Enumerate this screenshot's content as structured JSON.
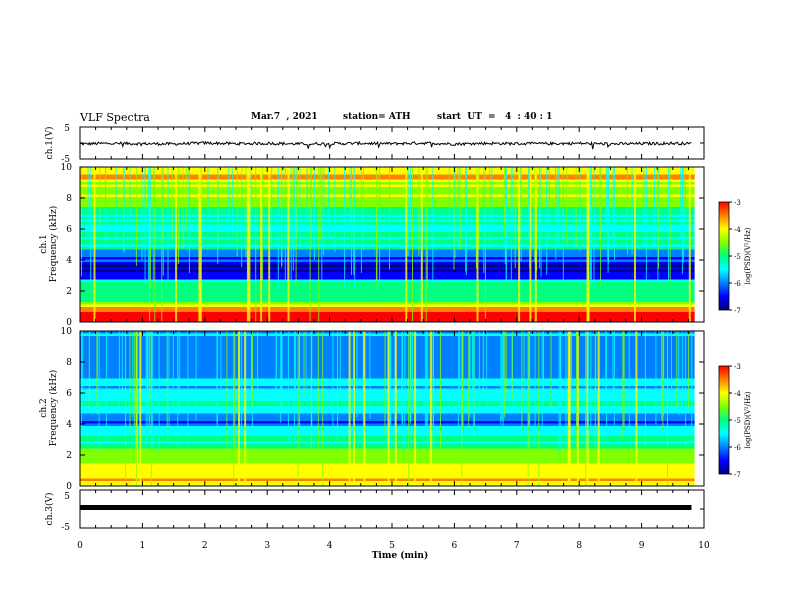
{
  "header": {
    "title": "VLF Spectra",
    "date": "Mar.7  , 2021",
    "station": "station= ATH",
    "start": "start  UT  =   4  : 40 : 1"
  },
  "colors": {
    "colormap": [
      "#000080",
      "#0000ff",
      "#0080ff",
      "#00ffff",
      "#00ff80",
      "#80ff00",
      "#ffff00",
      "#ff8000",
      "#ff0000",
      "#ff80c0"
    ],
    "trace": "#000000",
    "frame": "#000000"
  },
  "chart_data": [
    {
      "type": "line",
      "panel": "ch1-waveform",
      "ylabel": "ch.1(V)",
      "ylim": [
        -5,
        5
      ],
      "yticks": [
        "5",
        "-5"
      ],
      "x": [
        0,
        0.5,
        1,
        1.5,
        2,
        2.5,
        3,
        3.5,
        4,
        4.5,
        5,
        5.5,
        6,
        6.5,
        7,
        7.5,
        8,
        8.5,
        9,
        9.5,
        9.8
      ],
      "y": [
        -0.3,
        -0.1,
        -0.2,
        -0.3,
        0.0,
        -0.2,
        -0.1,
        -0.3,
        -0.2,
        -0.1,
        -0.2,
        0.0,
        -0.3,
        -0.1,
        -0.2,
        -0.2,
        -0.1,
        -0.3,
        -0.2,
        -0.1,
        -0.2
      ],
      "xlim": [
        0,
        10
      ]
    },
    {
      "type": "heatmap",
      "panel": "ch1-spectrogram",
      "ylabel": "ch.1\nFrequency  (kHz)",
      "ylim": [
        0,
        10
      ],
      "yticks": [
        "0",
        "2",
        "4",
        "6",
        "8",
        "10"
      ],
      "xlim": [
        0,
        10
      ],
      "colorbar": {
        "label": "log(PSD)(V²/Hz)",
        "range": [
          -7,
          -3
        ],
        "ticks": [
          "-3",
          "-4",
          "-5",
          "-6",
          "-7"
        ]
      },
      "bands": [
        {
          "f": 0.7,
          "level": -3.2
        },
        {
          "f": 1.3,
          "level": -4.8
        },
        {
          "f": 2.2,
          "level": -5.0
        },
        {
          "f": 3.3,
          "level": -6.6
        },
        {
          "f": 4.8,
          "level": -5.3
        },
        {
          "f": 6.5,
          "level": -5.1
        },
        {
          "f": 8.5,
          "level": -4.4
        },
        {
          "f": 9.5,
          "level": -4.0
        }
      ]
    },
    {
      "type": "heatmap",
      "panel": "ch2-spectrogram",
      "ylabel": "ch.2\nFrequency  (kHz)",
      "ylim": [
        0,
        10
      ],
      "yticks": [
        "0",
        "2",
        "4",
        "6",
        "8",
        "10"
      ],
      "xlim": [
        0,
        10
      ],
      "colorbar": {
        "label": "log(PSD)(V²/Hz)",
        "range": [
          -7,
          -3
        ],
        "ticks": [
          "-3",
          "-4",
          "-5",
          "-6",
          "-7"
        ]
      },
      "bands": [
        {
          "f": 0.8,
          "level": -4.1
        },
        {
          "f": 1.8,
          "level": -4.5
        },
        {
          "f": 2.8,
          "level": -5.0
        },
        {
          "f": 4.2,
          "level": -6.3
        },
        {
          "f": 5.0,
          "level": -5.3
        },
        {
          "f": 7.5,
          "level": -5.8
        },
        {
          "f": 9.3,
          "level": -5.9
        }
      ]
    },
    {
      "type": "line",
      "panel": "ch3-waveform",
      "ylabel": "ch.3(V)",
      "ylim": [
        -5,
        5
      ],
      "yticks": [
        "5",
        "-5"
      ],
      "x": [
        0,
        9.8
      ],
      "y": [
        0.4,
        0.4
      ],
      "xlim": [
        0,
        10
      ],
      "xlabel": "Time  (min)",
      "xticks": [
        "0",
        "1",
        "2",
        "3",
        "4",
        "5",
        "6",
        "7",
        "8",
        "9",
        "10"
      ]
    }
  ]
}
